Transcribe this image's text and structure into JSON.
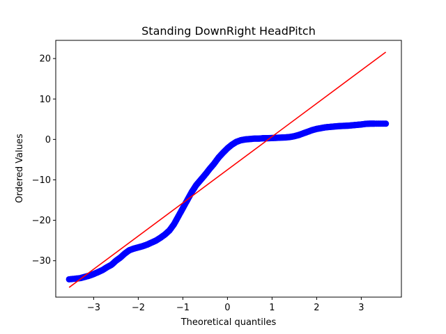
{
  "chart_data": {
    "type": "scatter",
    "title": "Standing DownRight HeadPitch",
    "xlabel": "Theoretical quantiles",
    "ylabel": "Ordered Values",
    "xlim": [
      -3.85,
      3.9
    ],
    "ylim": [
      -39.0,
      24.5
    ],
    "xticks": [
      -3,
      -2,
      -1,
      0,
      1,
      2,
      3
    ],
    "xtick_labels": [
      "−3",
      "−2",
      "−1",
      "0",
      "1",
      "2",
      "3"
    ],
    "yticks": [
      -30,
      -20,
      -10,
      0,
      10,
      20
    ],
    "ytick_labels": [
      "−30",
      "−20",
      "−10",
      "0",
      "10",
      "20"
    ],
    "grid": false,
    "legend": "none",
    "series": [
      {
        "kind": "points",
        "color": "#0000ff",
        "points": [
          [
            -3.55,
            -34.6
          ],
          [
            -3.3,
            -34.3
          ],
          [
            -3.2,
            -34.0
          ],
          [
            -3.1,
            -33.7
          ],
          [
            -3.0,
            -33.3
          ],
          [
            -2.9,
            -32.8
          ],
          [
            -2.8,
            -32.3
          ],
          [
            -2.7,
            -31.6
          ],
          [
            -2.6,
            -31.0
          ],
          [
            -2.5,
            -30.0
          ],
          [
            -2.4,
            -29.2
          ],
          [
            -2.3,
            -28.2
          ],
          [
            -2.2,
            -27.4
          ],
          [
            -2.1,
            -27.0
          ],
          [
            -2.0,
            -26.7
          ],
          [
            -1.9,
            -26.4
          ],
          [
            -1.8,
            -26.0
          ],
          [
            -1.7,
            -25.5
          ],
          [
            -1.6,
            -25.0
          ],
          [
            -1.5,
            -24.3
          ],
          [
            -1.4,
            -23.5
          ],
          [
            -1.3,
            -22.5
          ],
          [
            -1.2,
            -21.0
          ],
          [
            -1.1,
            -19.0
          ],
          [
            -1.0,
            -17.0
          ],
          [
            -0.9,
            -15.0
          ],
          [
            -0.8,
            -13.0
          ],
          [
            -0.7,
            -11.3
          ],
          [
            -0.6,
            -10.0
          ],
          [
            -0.5,
            -8.7
          ],
          [
            -0.4,
            -7.3
          ],
          [
            -0.3,
            -6.0
          ],
          [
            -0.2,
            -4.5
          ],
          [
            -0.1,
            -3.3
          ],
          [
            0.0,
            -2.2
          ],
          [
            0.1,
            -1.3
          ],
          [
            0.2,
            -0.6
          ],
          [
            0.3,
            -0.2
          ],
          [
            0.4,
            0.0
          ],
          [
            0.5,
            0.1
          ],
          [
            0.6,
            0.2
          ],
          [
            0.7,
            0.2
          ],
          [
            0.8,
            0.3
          ],
          [
            0.9,
            0.3
          ],
          [
            1.0,
            0.35
          ],
          [
            1.1,
            0.4
          ],
          [
            1.2,
            0.45
          ],
          [
            1.3,
            0.5
          ],
          [
            1.4,
            0.6
          ],
          [
            1.5,
            0.8
          ],
          [
            1.6,
            1.1
          ],
          [
            1.7,
            1.5
          ],
          [
            1.8,
            1.9
          ],
          [
            1.9,
            2.3
          ],
          [
            2.0,
            2.6
          ],
          [
            2.1,
            2.8
          ],
          [
            2.2,
            3.0
          ],
          [
            2.3,
            3.1
          ],
          [
            2.4,
            3.2
          ],
          [
            2.5,
            3.3
          ],
          [
            2.6,
            3.35
          ],
          [
            2.7,
            3.4
          ],
          [
            2.8,
            3.5
          ],
          [
            2.9,
            3.6
          ],
          [
            3.0,
            3.7
          ],
          [
            3.1,
            3.85
          ],
          [
            3.2,
            3.9
          ],
          [
            3.3,
            3.9
          ],
          [
            3.55,
            3.9
          ]
        ]
      },
      {
        "kind": "line",
        "color": "#ff0000",
        "points": [
          [
            -3.55,
            -36.6
          ],
          [
            3.55,
            21.6
          ]
        ]
      }
    ]
  }
}
